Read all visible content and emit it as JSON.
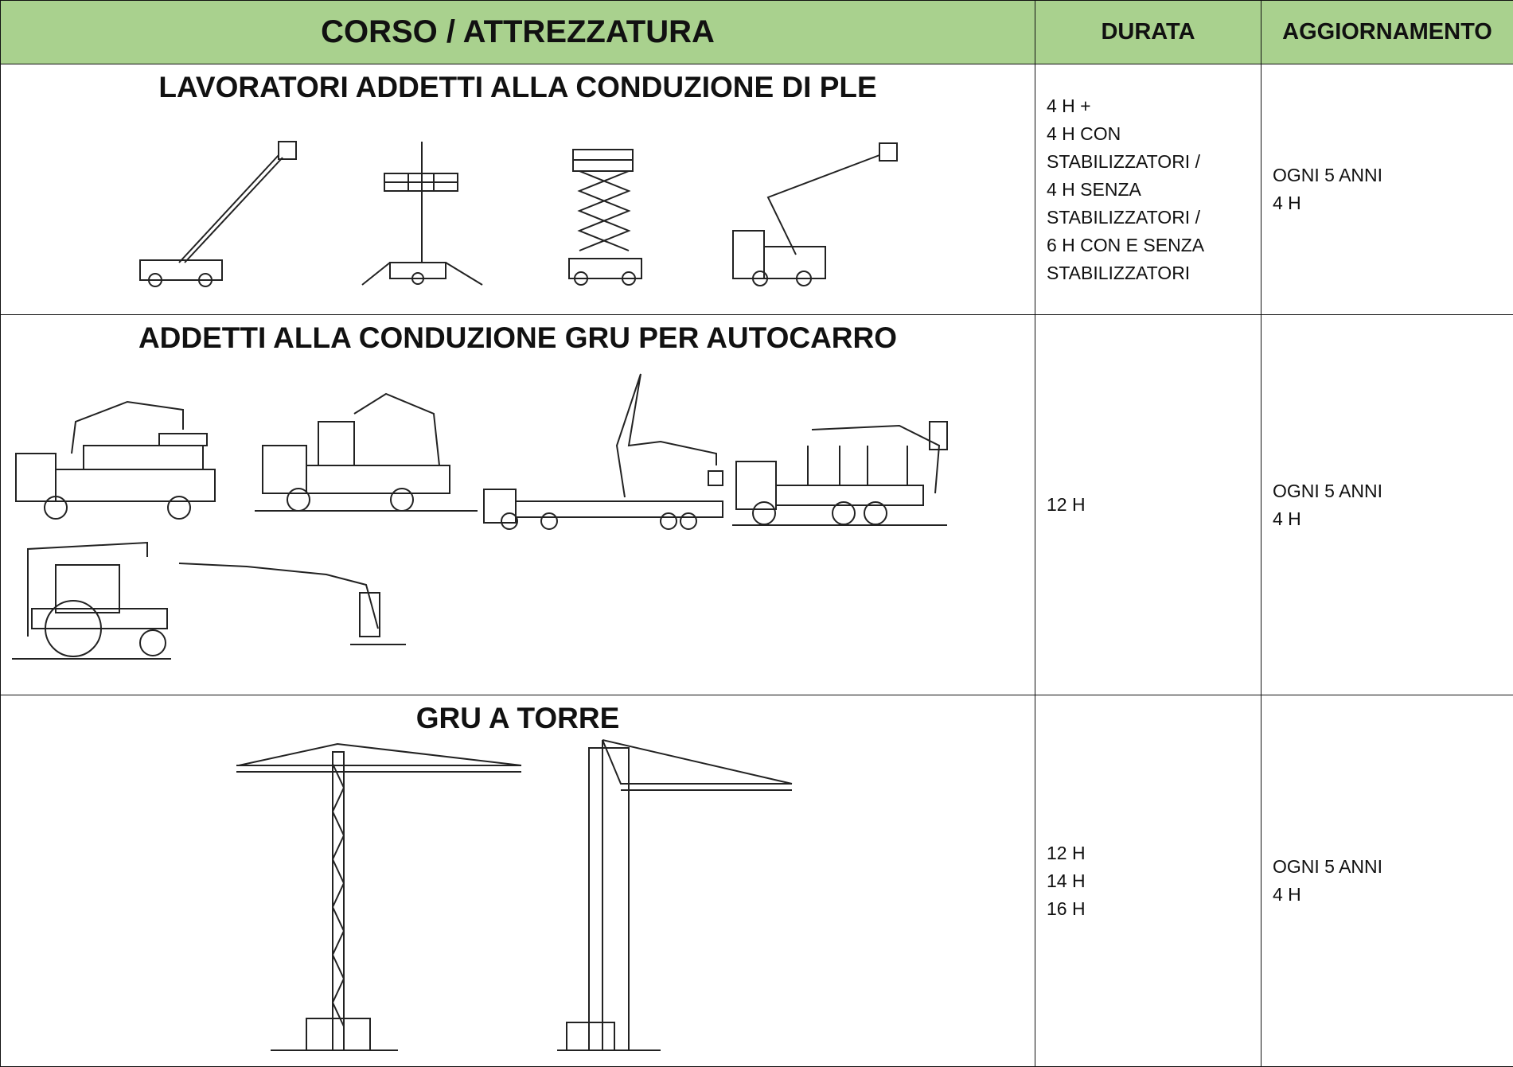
{
  "header": {
    "columns": [
      "CORSO / ATTREZZATURA",
      "DURATA",
      "AGGIORNAMENTO"
    ]
  },
  "rows": [
    {
      "title": "LAVORATORI ADDETTI ALLA CONDUZIONE DI PLE",
      "durata": [
        "4 H +",
        "4 H CON",
        "STABILIZZATORI /",
        "4 H SENZA",
        "STABILIZZATORI /",
        "6 H CON E SENZA",
        "STABILIZZATORI"
      ],
      "aggiornamento": [
        "OGNI 5 ANNI",
        "4 H"
      ]
    },
    {
      "title": "ADDETTI ALLA CONDUZIONE GRU PER AUTOCARRO",
      "durata": [
        "12 H"
      ],
      "aggiornamento": [
        "OGNI 5 ANNI",
        "4 H"
      ]
    },
    {
      "title": "GRU A TORRE",
      "durata": [
        "12 H",
        "14 H",
        "16 H"
      ],
      "aggiornamento": [
        "OGNI 5 ANNI",
        "4 H"
      ]
    }
  ]
}
